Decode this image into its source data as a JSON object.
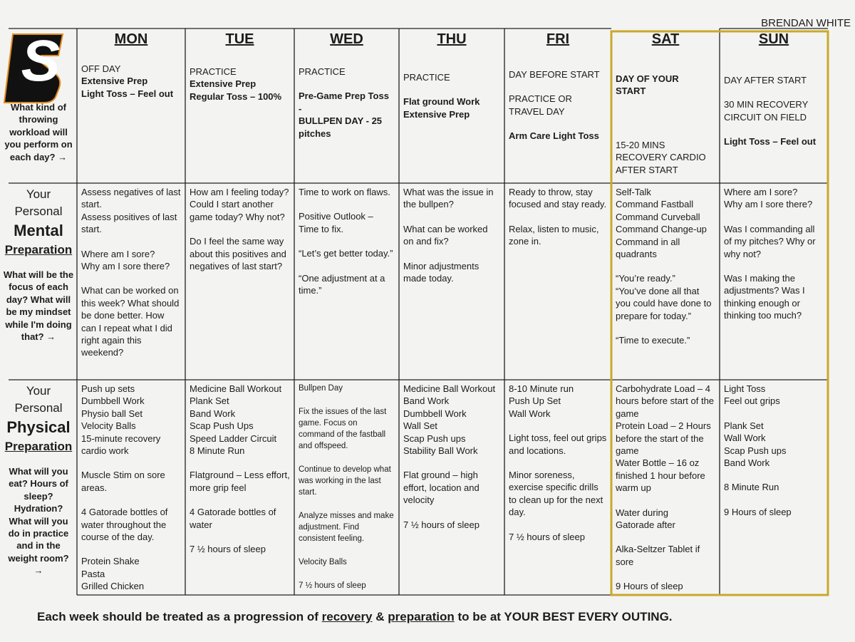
{
  "header": {
    "name": "BRENDAN WHITE"
  },
  "logo": "S",
  "days": [
    "MON",
    "TUE",
    "WED",
    "THU",
    "FRI",
    "SAT",
    "SUN"
  ],
  "rows": [
    {
      "question": "What kind of throwing workload will you perform on each day? →"
    },
    {
      "title": [
        "Your",
        "Personal",
        "Mental",
        "Preparation"
      ],
      "question": "What will be the focus of each day? What will be my mindset while I'm doing that? →"
    },
    {
      "title": [
        "Your",
        "Personal",
        "Physical",
        "Preparation"
      ],
      "question": "What will you eat? Hours of sleep? Hydration? What will you do in practice and in the weight room? →"
    }
  ],
  "cells": [
    [
      [
        [
          "OFF DAY",
          "Extensive Prep",
          "Light Toss – Feel out"
        ]
      ],
      [
        [
          "PRACTICE",
          "Extensive Prep",
          "Regular Toss – 100%"
        ]
      ],
      [
        [
          "PRACTICE"
        ],
        [
          "Pre-Game Prep Toss",
          "-",
          "BULLPEN DAY -  25 pitches"
        ]
      ],
      [
        [
          "PRACTICE"
        ],
        [
          "Flat ground Work",
          "Extensive Prep"
        ]
      ],
      [
        [
          "DAY BEFORE START"
        ],
        [
          "PRACTICE OR TRAVEL DAY"
        ],
        [
          "Arm Care Light Toss"
        ]
      ],
      [
        [
          "DAY OF YOUR START"
        ],
        [
          "15-20 MINS RECOVERY CARDIO AFTER START"
        ]
      ],
      [
        [
          "DAY AFTER START"
        ],
        [
          "30 MIN RECOVERY CIRCUIT ON FIELD"
        ],
        [
          "Light Toss – Feel out"
        ]
      ]
    ],
    [
      [
        [
          "Assess negatives of last start.",
          "Assess positives of last start."
        ],
        [
          "Where am I sore?",
          "Why am I sore there?"
        ],
        [
          "What can be worked on this week? What should be done better. How can I repeat what I did right again this weekend?"
        ]
      ],
      [
        [
          "How am I feeling today? Could I start another game today? Why not?"
        ],
        [
          "Do I feel the same way about this positives and negatives of last start?"
        ]
      ],
      [
        [
          "Time to work on flaws."
        ],
        [
          "Positive Outlook – Time to fix."
        ],
        [
          "“Let’s get better today.”"
        ],
        [
          "“One adjustment at a time.”"
        ]
      ],
      [
        [
          "What was the issue in the bullpen?"
        ],
        [
          "What can be worked on and fix?"
        ],
        [
          "Minor adjustments made today."
        ]
      ],
      [
        [
          "Ready to throw, stay focused and stay ready."
        ],
        [
          "Relax, listen to music, zone in."
        ]
      ],
      [
        [
          "Self-Talk",
          "Command Fastball",
          "Command Curveball",
          "Command Change-up",
          "Command in all quadrants"
        ],
        [
          "“You’re ready.”",
          "“You’ve done all that you could have done to prepare for today.”"
        ],
        [
          "“Time to execute.”"
        ]
      ],
      [
        [
          "Where am I sore?",
          "Why am I sore there?"
        ],
        [
          "Was I commanding all of my pitches? Why or why not?"
        ],
        [
          "Was I making the adjustments? Was I thinking enough or thinking too much?"
        ]
      ]
    ],
    [
      [
        [
          "Push up sets",
          "Dumbbell Work",
          "Physio ball Set",
          "Velocity Balls",
          "15-minute recovery cardio work"
        ],
        [
          "Muscle Stim on sore areas."
        ],
        [
          "4 Gatorade bottles of water throughout the course of the day."
        ],
        [
          "Protein Shake",
          "Pasta",
          "Grilled Chicken"
        ]
      ],
      [
        [
          "Medicine Ball Workout",
          "Plank Set",
          "Band Work",
          "Scap Push Ups",
          "Speed Ladder Circuit",
          "8 Minute Run"
        ],
        [
          "Flatground – Less effort, more grip feel"
        ],
        [
          "4 Gatorade bottles of water"
        ],
        [
          "7 ½ hours of sleep"
        ]
      ],
      [
        [
          "Bullpen Day"
        ],
        [
          "Fix the issues of the last game. Focus on command of the fastball and offspeed."
        ],
        [
          "Continue to develop what was working in the last start."
        ],
        [
          "Analyze misses and make adjustment. Find consistent feeling."
        ],
        [
          "Velocity Balls"
        ],
        [
          "7 ½ hours of sleep"
        ]
      ],
      [
        [
          "Medicine Ball Workout",
          "Band Work",
          "Dumbbell Work",
          "Wall Set",
          "Scap Push ups",
          "Stability Ball Work"
        ],
        [
          "Flat ground – high effort, location and velocity"
        ],
        [
          "7 ½ hours of sleep"
        ]
      ],
      [
        [
          "8-10 Minute run",
          "Push Up Set",
          "Wall Work"
        ],
        [
          "Light toss, feel out grips and locations."
        ],
        [
          "Minor soreness, exercise specific drills to clean up for the next day."
        ],
        [
          "7 ½ hours of sleep"
        ]
      ],
      [
        [
          "Carbohydrate Load – 4 hours before start of the game",
          "Protein Load – 2 Hours before the start of the game",
          "Water Bottle – 16 oz finished 1 hour before warm up"
        ],
        [
          "Water during",
          "Gatorade after"
        ],
        [
          "Alka-Seltzer Tablet if sore"
        ],
        [
          "9 Hours of sleep"
        ]
      ],
      [
        [
          "Light Toss",
          "Feel out grips"
        ],
        [
          "Plank Set",
          "Wall Work",
          "Scap Push ups",
          "Band Work"
        ],
        [
          "8 Minute Run"
        ],
        [
          "9 Hours of sleep"
        ]
      ]
    ]
  ],
  "footer": [
    "Each week should be treated as a progression of ",
    "recovery",
    " & ",
    "preparation",
    " to be at YOUR BEST EVERY OUTING."
  ]
}
